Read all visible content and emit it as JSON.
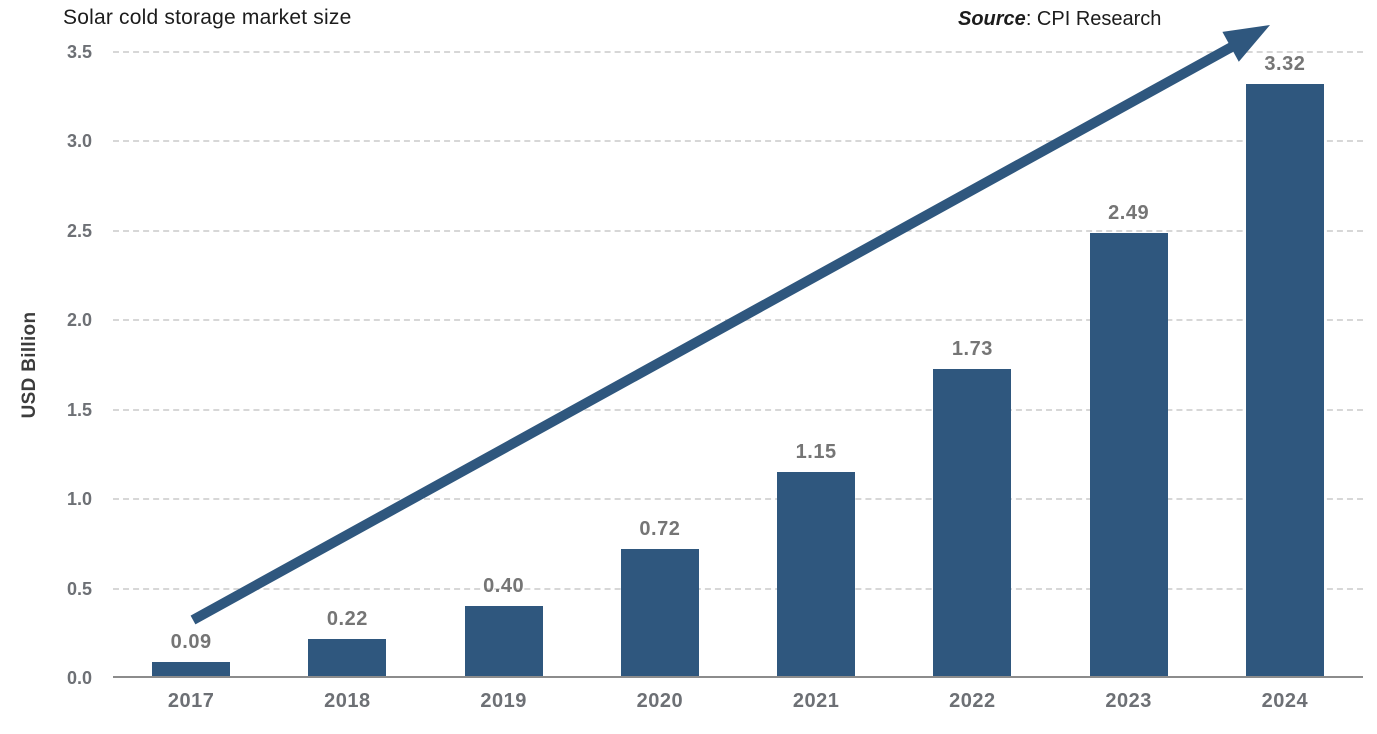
{
  "title": "Solar cold storage market size",
  "source": {
    "label": "Source",
    "rest": ": CPI Research"
  },
  "y_axis_title": "USD Billion",
  "colors": {
    "bar": "#2F577E",
    "arrow": "#2F577E",
    "grid": "#d7d7d7",
    "axis": "#8c8c8c",
    "tick_text": "#6d7075",
    "value_text": "#757575",
    "title_text": "#1c1c1c"
  },
  "annotation": {
    "type": "trend-arrow",
    "direction": "up-right"
  },
  "chart_data": {
    "type": "bar",
    "categories": [
      "2017",
      "2018",
      "2019",
      "2020",
      "2021",
      "2022",
      "2023",
      "2024"
    ],
    "values": [
      0.09,
      0.22,
      0.4,
      0.72,
      1.15,
      1.73,
      2.49,
      3.32
    ],
    "value_labels": [
      "0.09",
      "0.22",
      "0.40",
      "0.72",
      "1.15",
      "1.73",
      "2.49",
      "3.32"
    ],
    "title": "Solar cold storage market size",
    "xlabel": "",
    "ylabel": "USD Billion",
    "ylim": [
      0,
      3.5
    ],
    "yticks": [
      "0.0",
      "0.5",
      "1.0",
      "1.5",
      "2.0",
      "2.5",
      "3.0",
      "3.5"
    ],
    "grid": "horizontal-dashed",
    "legend": "none"
  }
}
